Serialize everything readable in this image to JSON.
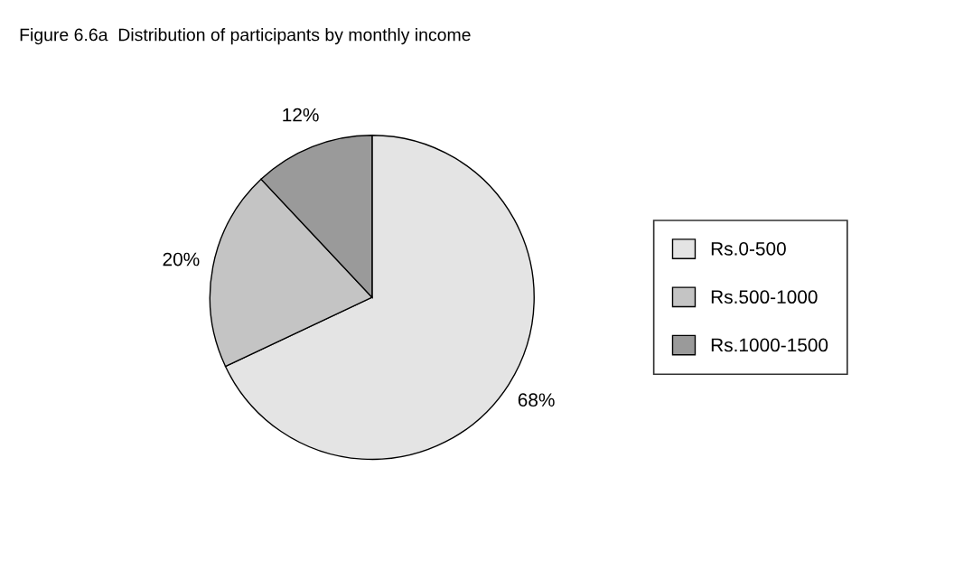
{
  "chart_data": {
    "type": "pie",
    "title": "Figure 6.6a  Distribution of participants by monthly income",
    "categories": [
      "Rs.0-500",
      "Rs.500-1000",
      "Rs.1000-1500"
    ],
    "values": [
      68,
      20,
      12
    ],
    "colors": [
      "#e4e4e4",
      "#c4c4c4",
      "#9a9a9a"
    ],
    "value_labels": [
      "68%",
      "20%",
      "12%"
    ],
    "legend": "right"
  }
}
